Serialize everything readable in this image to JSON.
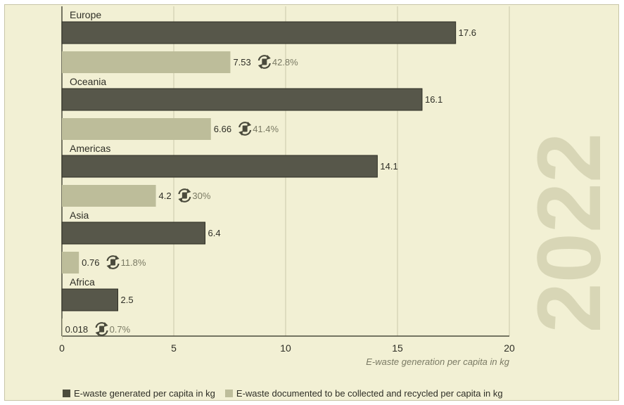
{
  "chart_data": {
    "type": "bar",
    "orientation": "horizontal",
    "categories": [
      "Europe",
      "Oceania",
      "Americas",
      "Asia",
      "Africa"
    ],
    "series": [
      {
        "name": "E-waste generated per capita in kg",
        "values": [
          17.6,
          16.1,
          14.1,
          6.4,
          2.5
        ],
        "color": "#5a5a47"
      },
      {
        "name": "E-waste documented to be collected and recycled per capita in kg",
        "values": [
          7.53,
          6.66,
          4.2,
          0.76,
          0.018
        ],
        "color": "#bdbd9a"
      }
    ],
    "value_labels": {
      "generated": [
        "17.6",
        "16.1",
        "14.1",
        "6.4",
        "2.5"
      ],
      "collected": [
        "7.53",
        "6.66",
        "4.2",
        "0.76",
        "0.018"
      ]
    },
    "collection_rates": [
      "42.8%",
      "41.4%",
      "30%",
      "11.8%",
      "0.7%"
    ],
    "xlim": [
      0,
      20
    ],
    "xticks": [
      0,
      5,
      10,
      15,
      20
    ],
    "xlabel": "E-waste generation per capita in kg",
    "year_label": "2022",
    "grid": true,
    "legend_position": "bottom-left",
    "icon": "recycle-icon",
    "colors": {
      "background": "#f2f0d4",
      "grid": "#c9c7aa",
      "axis": "#4a4a3c",
      "text": "#2e2e26",
      "muted_text": "#7a7a64",
      "year": "#d8d6b6"
    }
  }
}
